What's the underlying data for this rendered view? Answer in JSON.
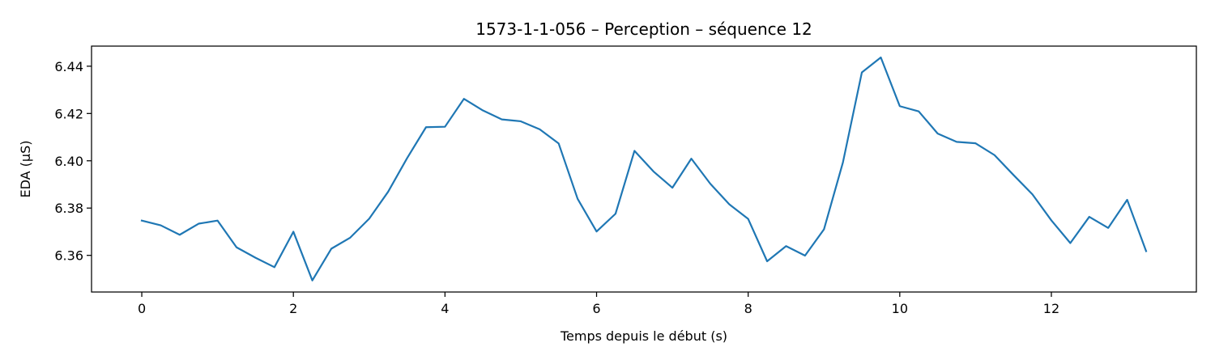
{
  "chart_data": {
    "type": "line",
    "title": "1573-1-1-056 – Perception – séquence 12",
    "xlabel": "Temps depuis le début (s)",
    "ylabel": "EDA (µS)",
    "xlim": [
      -0.663,
      13.913
    ],
    "ylim": [
      6.3445,
      6.4485
    ],
    "xticks": [
      0,
      2,
      4,
      6,
      8,
      10,
      12
    ],
    "xtick_labels": [
      "0",
      "2",
      "4",
      "6",
      "8",
      "10",
      "12"
    ],
    "yticks": [
      6.36,
      6.38,
      6.4,
      6.42,
      6.44
    ],
    "ytick_labels": [
      "6.36",
      "6.38",
      "6.40",
      "6.42",
      "6.44"
    ],
    "grid": false,
    "line_color": "#1f77b4",
    "series": [
      {
        "x": [
          0,
          0.25,
          0.5,
          0.75,
          1.0,
          1.25,
          1.5,
          1.75,
          2.0,
          2.25,
          2.5,
          2.75,
          3.0,
          3.25,
          3.5,
          3.75,
          4.0,
          4.25,
          4.5,
          4.75,
          5.0,
          5.25,
          5.5,
          5.75,
          6.0,
          6.25,
          6.5,
          6.75,
          7.0,
          7.25,
          7.5,
          7.75,
          8.0,
          8.25,
          8.5,
          8.75,
          9.0,
          9.25,
          9.5,
          9.75,
          10.0,
          10.25,
          10.5,
          10.75,
          11.0,
          11.25,
          11.5,
          11.75,
          12.0,
          12.25,
          12.5,
          12.75,
          13.0,
          13.25
        ],
        "y": [
          6.3747,
          6.3727,
          6.3687,
          6.3734,
          6.3747,
          6.3634,
          6.359,
          6.355,
          6.37,
          6.3494,
          6.3628,
          6.3675,
          6.3755,
          6.3869,
          6.4011,
          6.4142,
          6.4144,
          6.4262,
          6.4213,
          6.4175,
          6.4167,
          6.4133,
          6.4073,
          6.3839,
          6.3701,
          6.3776,
          6.4042,
          6.3955,
          6.3886,
          6.4009,
          6.3903,
          6.3816,
          6.3754,
          6.3575,
          6.3639,
          6.3599,
          6.371,
          6.3993,
          6.4374,
          6.4437,
          6.4231,
          6.4209,
          6.4115,
          6.408,
          6.4074,
          6.4024,
          6.394,
          6.3858,
          6.3748,
          6.3652,
          6.3763,
          6.3716,
          6.3835,
          6.3618
        ]
      }
    ]
  }
}
